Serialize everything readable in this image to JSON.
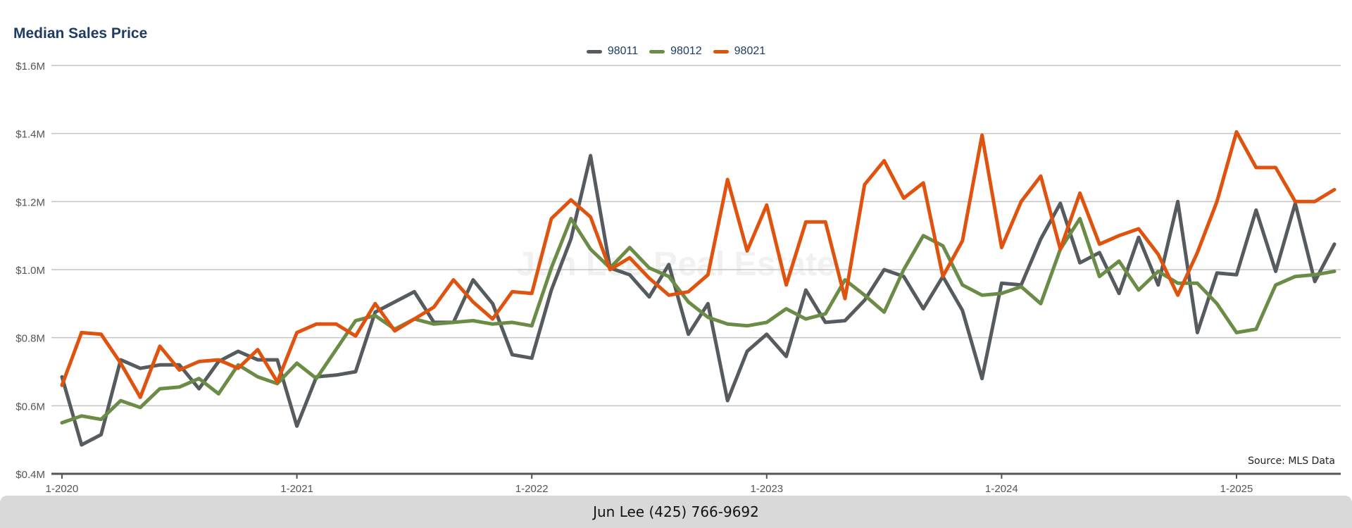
{
  "footer": {
    "contact": "Jun Lee (425) 766-9692"
  },
  "watermark": "Jun Lee Real Estate",
  "colors": {
    "98011": "#555b5e",
    "98012": "#6b8c46",
    "98021": "#e0530e"
  },
  "chart_data": {
    "type": "line",
    "title": "Median Sales Price",
    "source": "Source: MLS Data",
    "xlabel": "",
    "ylabel": "",
    "ylim": [
      400000,
      1600000
    ],
    "yticks": [
      {
        "value": 400000,
        "label": "$0.4M"
      },
      {
        "value": 600000,
        "label": "$0.6M"
      },
      {
        "value": 800000,
        "label": "$0.8M"
      },
      {
        "value": 1000000,
        "label": "$1.0M"
      },
      {
        "value": 1200000,
        "label": "$1.2M"
      },
      {
        "value": 1400000,
        "label": "$1.4M"
      },
      {
        "value": 1600000,
        "label": "$1.6M"
      }
    ],
    "xticks": [
      "1-2020",
      "1-2021",
      "1-2022",
      "1-2023",
      "1-2024",
      "1-2025"
    ],
    "x": [
      "1-2020",
      "2-2020",
      "3-2020",
      "4-2020",
      "5-2020",
      "6-2020",
      "7-2020",
      "8-2020",
      "9-2020",
      "10-2020",
      "11-2020",
      "12-2020",
      "1-2021",
      "2-2021",
      "3-2021",
      "4-2021",
      "5-2021",
      "6-2021",
      "7-2021",
      "8-2021",
      "9-2021",
      "10-2021",
      "11-2021",
      "12-2021",
      "1-2022",
      "2-2022",
      "3-2022",
      "4-2022",
      "5-2022",
      "6-2022",
      "7-2022",
      "8-2022",
      "9-2022",
      "10-2022",
      "11-2022",
      "12-2022",
      "1-2023",
      "2-2023",
      "3-2023",
      "4-2023",
      "5-2023",
      "6-2023",
      "7-2023",
      "8-2023",
      "9-2023",
      "10-2023",
      "11-2023",
      "12-2023",
      "1-2024",
      "2-2024",
      "3-2024",
      "4-2024",
      "5-2024",
      "6-2024",
      "7-2024",
      "8-2024",
      "9-2024",
      "10-2024",
      "11-2024",
      "12-2024",
      "1-2025",
      "2-2025",
      "3-2025",
      "4-2025",
      "5-2025",
      "6-2025"
    ],
    "grid": true,
    "legend_position": "top-center",
    "series": [
      {
        "name": "98011",
        "values": [
          685000,
          485000,
          515000,
          735000,
          710000,
          720000,
          720000,
          650000,
          730000,
          760000,
          735000,
          735000,
          540000,
          685000,
          690000,
          700000,
          875000,
          905000,
          935000,
          845000,
          845000,
          970000,
          900000,
          750000,
          740000,
          940000,
          1090000,
          1335000,
          1005000,
          985000,
          920000,
          1015000,
          810000,
          900000,
          615000,
          760000,
          810000,
          745000,
          940000,
          845000,
          850000,
          910000,
          1000000,
          980000,
          885000,
          980000,
          880000,
          680000,
          960000,
          955000,
          1090000,
          1195000,
          1020000,
          1050000,
          930000,
          1095000,
          955000,
          1200000,
          815000,
          990000,
          985000,
          1175000,
          995000,
          1195000,
          965000,
          1075000
        ]
      },
      {
        "name": "98012",
        "values": [
          550000,
          570000,
          560000,
          615000,
          595000,
          650000,
          655000,
          680000,
          635000,
          720000,
          685000,
          665000,
          725000,
          680000,
          765000,
          850000,
          865000,
          825000,
          855000,
          840000,
          845000,
          850000,
          840000,
          845000,
          835000,
          1005000,
          1150000,
          1060000,
          1005000,
          1065000,
          1005000,
          980000,
          905000,
          860000,
          840000,
          835000,
          845000,
          885000,
          855000,
          870000,
          970000,
          925000,
          875000,
          1000000,
          1100000,
          1070000,
          955000,
          925000,
          930000,
          950000,
          900000,
          1060000,
          1150000,
          980000,
          1025000,
          940000,
          995000,
          960000,
          960000,
          900000,
          815000,
          825000,
          955000,
          980000,
          985000,
          995000
        ]
      },
      {
        "name": "98021",
        "values": [
          660000,
          815000,
          810000,
          725000,
          625000,
          775000,
          705000,
          730000,
          735000,
          710000,
          765000,
          670000,
          815000,
          840000,
          840000,
          805000,
          900000,
          820000,
          855000,
          890000,
          970000,
          905000,
          855000,
          935000,
          930000,
          1150000,
          1205000,
          1155000,
          1000000,
          1035000,
          975000,
          925000,
          935000,
          985000,
          1265000,
          1055000,
          1190000,
          955000,
          1140000,
          1140000,
          915000,
          1250000,
          1320000,
          1210000,
          1255000,
          980000,
          1085000,
          1395000,
          1065000,
          1200000,
          1275000,
          1060000,
          1225000,
          1075000,
          1100000,
          1120000,
          1045000,
          925000,
          1050000,
          1200000,
          1405000,
          1300000,
          1300000,
          1200000,
          1200000,
          1235000
        ]
      }
    ]
  }
}
